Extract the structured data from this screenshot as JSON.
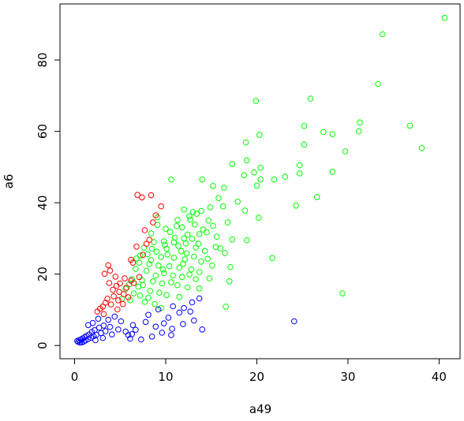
{
  "chart_data": {
    "type": "scatter",
    "title": "",
    "xlabel": "a49",
    "ylabel": "a6",
    "xlim": [
      -1.6,
      42.3
    ],
    "ylim": [
      -3.7,
      95.7
    ],
    "xticks": [
      0,
      10,
      20,
      30,
      40
    ],
    "yticks": [
      0,
      20,
      40,
      60,
      80
    ],
    "grid": false,
    "legend": "none",
    "series": [
      {
        "color": "#00ff00",
        "points": [
          [
            40.6,
            91.8
          ],
          [
            33.8,
            87.2
          ],
          [
            33.3,
            73.3
          ],
          [
            25.9,
            69.2
          ],
          [
            19.9,
            68.5
          ],
          [
            31.3,
            62.5
          ],
          [
            36.8,
            61.6
          ],
          [
            25.2,
            61.5
          ],
          [
            31.2,
            60.0
          ],
          [
            27.3,
            59.8
          ],
          [
            28.3,
            59.2
          ],
          [
            20.3,
            59.0
          ],
          [
            25.2,
            56.3
          ],
          [
            38.1,
            55.3
          ],
          [
            18.8,
            56.9
          ],
          [
            29.7,
            54.4
          ],
          [
            18.9,
            51.9
          ],
          [
            17.3,
            50.8
          ],
          [
            24.7,
            50.5
          ],
          [
            20.4,
            49.8
          ],
          [
            19.7,
            48.5
          ],
          [
            28.3,
            48.7
          ],
          [
            24.7,
            48.2
          ],
          [
            18.6,
            47.7
          ],
          [
            20.4,
            46.5
          ],
          [
            23.1,
            47.3
          ],
          [
            14.0,
            46.5
          ],
          [
            21.9,
            46.5
          ],
          [
            20.0,
            44.8
          ],
          [
            10.6,
            46.5
          ],
          [
            15.2,
            44.7
          ],
          [
            16.4,
            44.2
          ],
          [
            15.8,
            41.3
          ],
          [
            26.6,
            41.6
          ],
          [
            17.9,
            40.3
          ],
          [
            14.9,
            38.7
          ],
          [
            24.3,
            39.2
          ],
          [
            16.3,
            39.0
          ],
          [
            18.7,
            37.8
          ],
          [
            13.0,
            37.4
          ],
          [
            12.6,
            36.2
          ],
          [
            11.3,
            35.2
          ],
          [
            20.2,
            35.8
          ],
          [
            16.8,
            34.5
          ],
          [
            15.2,
            33.5
          ],
          [
            14.1,
            32.5
          ],
          [
            12.4,
            31.1
          ],
          [
            11.0,
            30.2
          ],
          [
            9.8,
            29.2
          ],
          [
            13.6,
            28.5
          ],
          [
            17.3,
            29.7
          ],
          [
            18.9,
            29.5
          ],
          [
            16.0,
            27.2
          ],
          [
            14.3,
            26.5
          ],
          [
            12.3,
            25.8
          ],
          [
            11.7,
            26.4
          ],
          [
            10.1,
            27.1
          ],
          [
            9.0,
            26.3
          ],
          [
            8.0,
            25.6
          ],
          [
            7.2,
            25.2
          ],
          [
            9.5,
            24.8
          ],
          [
            10.9,
            24.6
          ],
          [
            12.1,
            24.1
          ],
          [
            13.9,
            23.5
          ],
          [
            21.7,
            24.5
          ],
          [
            7.1,
            23.2
          ],
          [
            8.2,
            22.8
          ],
          [
            9.2,
            22.4
          ],
          [
            10.4,
            22.2
          ],
          [
            11.5,
            21.8
          ],
          [
            12.8,
            21.3
          ],
          [
            13.7,
            20.6
          ],
          [
            17.1,
            22.0
          ],
          [
            6.7,
            21.5
          ],
          [
            7.9,
            20.9
          ],
          [
            9.8,
            20.3
          ],
          [
            10.8,
            19.6
          ],
          [
            11.8,
            19.2
          ],
          [
            13.3,
            18.6
          ],
          [
            17.0,
            18.0
          ],
          [
            6.3,
            18.6
          ],
          [
            7.4,
            18.3
          ],
          [
            8.6,
            18.0
          ],
          [
            9.6,
            17.4
          ],
          [
            11.3,
            16.9
          ],
          [
            12.4,
            16.3
          ],
          [
            13.7,
            16.0
          ],
          [
            7.0,
            16.5
          ],
          [
            8.3,
            15.3
          ],
          [
            9.3,
            14.8
          ],
          [
            10.1,
            14.1
          ],
          [
            11.5,
            13.6
          ],
          [
            6.5,
            14.6
          ],
          [
            7.7,
            12.2
          ],
          [
            8.8,
            11.6
          ],
          [
            9.5,
            10.5
          ],
          [
            16.6,
            10.9
          ],
          [
            29.4,
            14.6
          ],
          [
            11.2,
            33.5
          ],
          [
            13.7,
            31.2
          ],
          [
            15.6,
            30.5
          ],
          [
            12.2,
            28.6
          ],
          [
            10.5,
            31.8
          ],
          [
            9.1,
            33.8
          ],
          [
            8.7,
            29.0
          ],
          [
            7.6,
            27.4
          ],
          [
            6.8,
            24.4
          ],
          [
            14.6,
            24.3
          ],
          [
            15.1,
            22.4
          ],
          [
            13.1,
            24.9
          ],
          [
            10.2,
            25.5
          ],
          [
            8.4,
            23.9
          ],
          [
            9.7,
            21.3
          ],
          [
            11.9,
            22.9
          ],
          [
            12.6,
            19.9
          ],
          [
            14.8,
            18.8
          ],
          [
            10.6,
            17.7
          ],
          [
            8.9,
            19.6
          ],
          [
            7.5,
            16.9
          ],
          [
            6.0,
            17.2
          ],
          [
            5.6,
            15.9
          ],
          [
            7.2,
            14.0
          ],
          [
            8.1,
            13.4
          ],
          [
            6.1,
            12.7
          ],
          [
            5.2,
            13.1
          ],
          [
            12.0,
            38.1
          ],
          [
            13.4,
            36.9
          ],
          [
            12.7,
            35.3
          ],
          [
            11.8,
            33.1
          ],
          [
            15.5,
            27.6
          ],
          [
            16.5,
            25.9
          ],
          [
            13.3,
            27.4
          ],
          [
            9.9,
            28.2
          ],
          [
            10.9,
            28.9
          ],
          [
            11.4,
            27.9
          ],
          [
            12.9,
            29.9
          ],
          [
            14.5,
            31.7
          ],
          [
            13.2,
            33.9
          ],
          [
            10.0,
            32.7
          ],
          [
            8.4,
            31.4
          ],
          [
            9.1,
            35.9
          ],
          [
            14.7,
            35.0
          ],
          [
            13.9,
            37.7
          ],
          [
            12.0,
            30.0
          ],
          [
            8.5,
            27.1
          ]
        ]
      },
      {
        "color": "#ff0000",
        "points": [
          [
            6.9,
            42.2
          ],
          [
            7.4,
            41.5
          ],
          [
            8.4,
            42.1
          ],
          [
            9.5,
            39.0
          ],
          [
            8.9,
            36.5
          ],
          [
            8.6,
            34.5
          ],
          [
            7.7,
            32.3
          ],
          [
            8.2,
            29.6
          ],
          [
            7.9,
            28.5
          ],
          [
            6.8,
            27.7
          ],
          [
            7.5,
            25.4
          ],
          [
            6.2,
            24.0
          ],
          [
            6.4,
            23.2
          ],
          [
            3.7,
            22.5
          ],
          [
            3.9,
            21.0
          ],
          [
            3.3,
            20.1
          ],
          [
            4.5,
            19.3
          ],
          [
            5.5,
            18.8
          ],
          [
            6.2,
            18.2
          ],
          [
            5.0,
            17.4
          ],
          [
            4.6,
            16.7
          ],
          [
            5.7,
            16.2
          ],
          [
            4.2,
            15.6
          ],
          [
            4.9,
            15.0
          ],
          [
            5.4,
            14.4
          ],
          [
            4.3,
            13.8
          ],
          [
            3.6,
            13.1
          ],
          [
            4.8,
            12.7
          ],
          [
            3.4,
            12.0
          ],
          [
            4.0,
            11.5
          ],
          [
            3.1,
            10.9
          ],
          [
            5.9,
            13.5
          ],
          [
            6.5,
            17.5
          ],
          [
            7.1,
            19.2
          ],
          [
            3.8,
            17.5
          ],
          [
            2.8,
            10.3
          ],
          [
            2.5,
            9.5
          ],
          [
            3.2,
            8.8
          ],
          [
            4.7,
            10.1
          ],
          [
            5.3,
            11.6
          ]
        ]
      },
      {
        "color": "#0000ff",
        "points": [
          [
            13.7,
            13.2
          ],
          [
            12.9,
            12.1
          ],
          [
            10.8,
            11.0
          ],
          [
            12.0,
            10.5
          ],
          [
            9.2,
            10.1
          ],
          [
            11.5,
            9.2
          ],
          [
            12.7,
            9.5
          ],
          [
            8.1,
            8.6
          ],
          [
            10.3,
            7.8
          ],
          [
            13.1,
            7.0
          ],
          [
            7.8,
            6.6
          ],
          [
            9.8,
            6.2
          ],
          [
            11.9,
            6.0
          ],
          [
            14.0,
            4.5
          ],
          [
            6.4,
            5.7
          ],
          [
            8.9,
            5.3
          ],
          [
            10.7,
            4.7
          ],
          [
            24.1,
            6.8
          ],
          [
            6.7,
            4.4
          ],
          [
            9.6,
            3.6
          ],
          [
            6.3,
            3.2
          ],
          [
            8.5,
            2.5
          ],
          [
            10.6,
            2.9
          ],
          [
            6.1,
            1.9
          ],
          [
            7.3,
            1.7
          ],
          [
            5.6,
            3.9
          ],
          [
            4.8,
            4.5
          ],
          [
            3.9,
            5.2
          ],
          [
            3.2,
            5.6
          ],
          [
            2.7,
            5.0
          ],
          [
            2.2,
            4.3
          ],
          [
            1.9,
            3.8
          ],
          [
            1.6,
            3.1
          ],
          [
            1.3,
            2.7
          ],
          [
            1.1,
            2.3
          ],
          [
            0.9,
            2.0
          ],
          [
            0.7,
            1.7
          ],
          [
            0.5,
            1.5
          ],
          [
            0.3,
            1.3
          ],
          [
            0.4,
            1.0
          ],
          [
            0.6,
            0.8
          ],
          [
            0.8,
            0.9
          ],
          [
            1.0,
            1.1
          ],
          [
            1.2,
            1.4
          ],
          [
            1.5,
            1.8
          ],
          [
            1.8,
            2.2
          ],
          [
            2.1,
            2.6
          ],
          [
            2.4,
            3.0
          ],
          [
            2.9,
            3.5
          ],
          [
            3.4,
            4.0
          ],
          [
            3.7,
            7.2
          ],
          [
            4.4,
            8.1
          ],
          [
            5.1,
            6.8
          ],
          [
            2.6,
            7.5
          ],
          [
            2.0,
            6.3
          ],
          [
            1.5,
            5.7
          ],
          [
            4.1,
            3.1
          ],
          [
            3.1,
            2.1
          ],
          [
            2.3,
            1.5
          ],
          [
            5.9,
            2.9
          ]
        ]
      }
    ]
  }
}
